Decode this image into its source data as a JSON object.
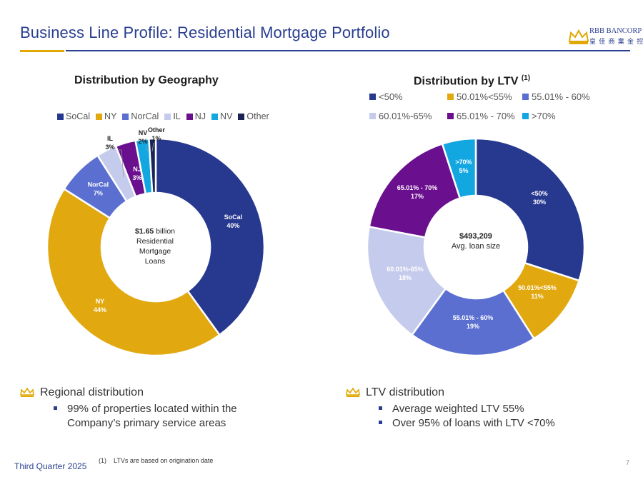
{
  "title": "Business Line Profile: Residential Mortgage Portfolio",
  "logo": {
    "line1": "RBB BANCORP",
    "line2": "皇 佳 商 業 金 控"
  },
  "colors": {
    "navy": "#2a3f8f",
    "gold": "#e0a800"
  },
  "geo_chart": {
    "heading": "Distribution by Geography",
    "legend": [
      "SoCal",
      "NY",
      "NorCal",
      "IL",
      "NJ",
      "NV",
      "Other"
    ],
    "center": {
      "amount": "$1.65",
      "unit": " billion",
      "line2": "Residential",
      "line3": "Mortgage",
      "line4": "Loans"
    }
  },
  "ltv_chart": {
    "heading": "Distribution by LTV",
    "heading_note": "(1)",
    "legend": [
      "<50%",
      "50.01%<55%",
      "55.01% - 60%",
      "60.01%-65%",
      "65.01% - 70%",
      ">70%"
    ],
    "center": {
      "amount": "$493,209",
      "line2": "Avg. loan size"
    }
  },
  "chart_data": [
    {
      "type": "pie",
      "title": "Distribution by Geography",
      "categories": [
        "SoCal",
        "NY",
        "NorCal",
        "IL",
        "NJ",
        "NV",
        "Other"
      ],
      "values": [
        40,
        44,
        7,
        3,
        3,
        2,
        1
      ],
      "labels": [
        "40%",
        "44%",
        "7%",
        "3%",
        "3%",
        "2%",
        "1%"
      ],
      "colors": [
        "#27388f",
        "#e1a90f",
        "#5b6fd1",
        "#c5cbec",
        "#6a0f8e",
        "#13a7e2",
        "#1a2355"
      ],
      "legend_position": "top"
    },
    {
      "type": "pie",
      "title": "Distribution by LTV (1)",
      "categories": [
        "<50%",
        "50.01%<55%",
        "55.01% - 60%",
        "60.01%-65%",
        "65.01% - 70%",
        ">70%"
      ],
      "values": [
        30,
        11,
        19,
        18,
        17,
        5
      ],
      "labels": [
        "30%",
        "11%",
        "19%",
        "18%",
        "17%",
        "5%"
      ],
      "colors": [
        "#27388f",
        "#e1a90f",
        "#5b6fd1",
        "#c5cbec",
        "#6a0f8e",
        "#13a7e2"
      ],
      "legend_position": "top"
    }
  ],
  "bullets_left": {
    "heading": "Regional distribution",
    "items": [
      "99% of properties located within the",
      "Company’s primary service areas"
    ]
  },
  "bullets_right": {
    "heading": "LTV distribution",
    "items": [
      "Average weighted LTV 55%",
      "Over 95% of loans with LTV <70%"
    ]
  },
  "footer": {
    "quarter": "Third Quarter 2025",
    "footnote_marker": "(1)",
    "footnote": "LTVs are based on origination date",
    "page": "7"
  }
}
